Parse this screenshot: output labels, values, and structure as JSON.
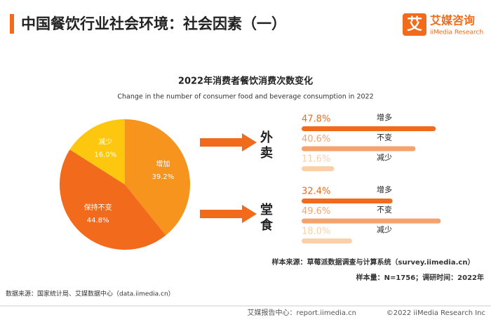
{
  "header": {
    "title": "中国餐饮行业社会环境：社会因素（一）",
    "logo_icon": "艾",
    "logo_name": "艾媒咨询",
    "logo_sub": "iiMedia Research"
  },
  "chart_data": [
    {
      "type": "pie",
      "title": "2022年消费者餐饮消费次数变化",
      "subtitle": "Change in the number of consumer food and beverage consumption in 2022",
      "categories": [
        "增加",
        "保持不变",
        "减少"
      ],
      "values": [
        39.2,
        44.8,
        16.0
      ],
      "value_labels": [
        "39.2%",
        "44.8%",
        "16.0%"
      ],
      "colors": [
        "#f7941d",
        "#f26a1b",
        "#fdc70f"
      ]
    },
    {
      "type": "bar",
      "title": "外卖",
      "categories": [
        "增多",
        "不变",
        "减少"
      ],
      "values": [
        47.8,
        40.6,
        11.6
      ],
      "value_labels": [
        "47.8%",
        "40.6%",
        "11.6%"
      ],
      "colors": [
        "#f26a1b",
        "#f5a36e",
        "#fbd0a8"
      ]
    },
    {
      "type": "bar",
      "title": "堂食",
      "categories": [
        "增多",
        "不变",
        "减少"
      ],
      "values": [
        32.4,
        49.6,
        18.0
      ],
      "value_labels": [
        "32.4%",
        "49.6%",
        "18.0%"
      ],
      "colors": [
        "#f26a1b",
        "#f5a36e",
        "#fbd0a8"
      ]
    }
  ],
  "footer": {
    "sample_source": "样本来源：草莓派数据调查与计算系统（survey.iimedia.cn）",
    "sample_size": "样本量：N=1756；调研时间：2022年",
    "data_source": "数据来源：国家统计局、艾媒数据中心（data.iimedia.cn）",
    "report_center": "艾媒报告中心：report.iimedia.cn",
    "copyright": "©2022  iiMedia Research  Inc"
  }
}
